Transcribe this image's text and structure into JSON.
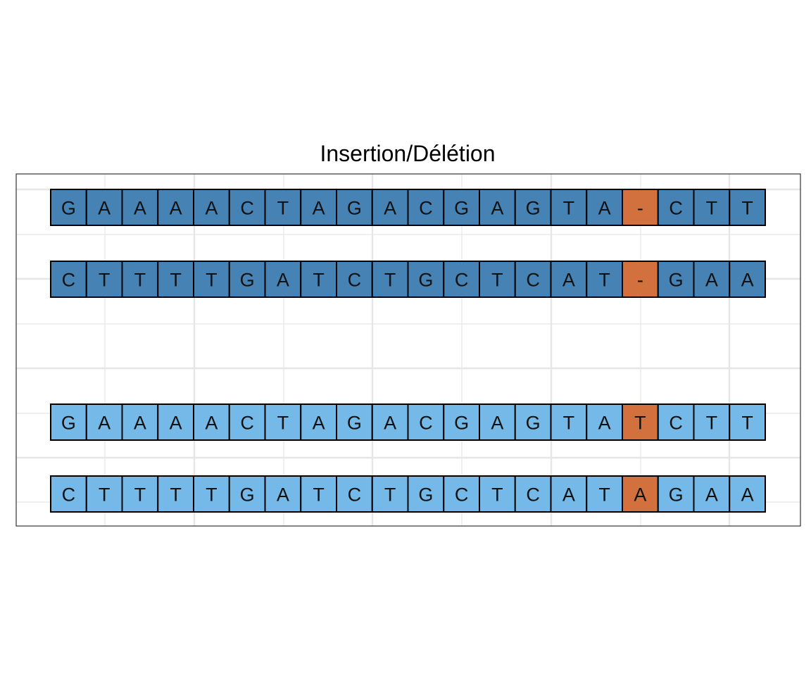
{
  "title": "Insertion/Délétion",
  "colors": {
    "mutation_bases": "#4682b4",
    "reference_bases": "#74b9e7",
    "highlight": "#d2713e",
    "cell_border": "#000000",
    "grid_lines": "#e6e6e6",
    "panel_border": "#333333"
  },
  "rows": [
    {
      "id": "deletion-forward",
      "style": "mutation",
      "bases": [
        "G",
        "A",
        "A",
        "A",
        "A",
        "C",
        "T",
        "A",
        "G",
        "A",
        "C",
        "G",
        "A",
        "G",
        "T",
        "A",
        "-",
        "C",
        "T",
        "T"
      ],
      "highlight_index": 16
    },
    {
      "id": "deletion-reverse",
      "style": "mutation",
      "bases": [
        "C",
        "T",
        "T",
        "T",
        "T",
        "G",
        "A",
        "T",
        "C",
        "T",
        "G",
        "C",
        "T",
        "C",
        "A",
        "T",
        "-",
        "G",
        "A",
        "A"
      ],
      "highlight_index": 16
    },
    {
      "id": "reference-forward",
      "style": "reference",
      "bases": [
        "G",
        "A",
        "A",
        "A",
        "A",
        "C",
        "T",
        "A",
        "G",
        "A",
        "C",
        "G",
        "A",
        "G",
        "T",
        "A",
        "T",
        "C",
        "T",
        "T"
      ],
      "highlight_index": 16
    },
    {
      "id": "reference-reverse",
      "style": "reference",
      "bases": [
        "C",
        "T",
        "T",
        "T",
        "T",
        "G",
        "A",
        "T",
        "C",
        "T",
        "G",
        "C",
        "T",
        "C",
        "A",
        "T",
        "A",
        "G",
        "A",
        "A"
      ],
      "highlight_index": 16
    }
  ]
}
